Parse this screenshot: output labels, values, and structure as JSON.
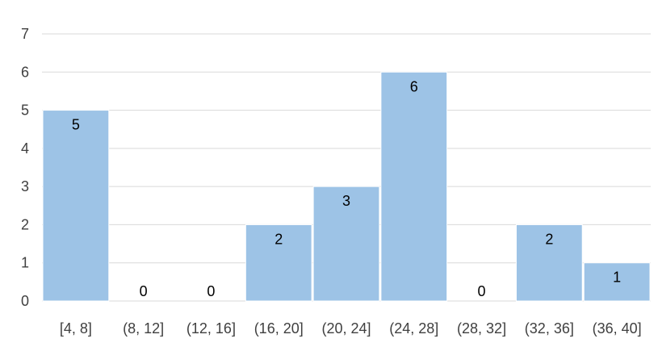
{
  "chart_data": {
    "type": "bar",
    "categories": [
      "[4, 8]",
      "(8, 12]",
      "(12, 16]",
      "(16, 20]",
      "(20, 24]",
      "(24, 28]",
      "(28, 32]",
      "(32, 36]",
      "(36, 40]"
    ],
    "values": [
      5,
      0,
      0,
      2,
      3,
      6,
      0,
      2,
      1
    ],
    "title": "",
    "xlabel": "",
    "ylabel": "",
    "ylim": [
      0,
      7
    ],
    "yticks": [
      0,
      1,
      2,
      3,
      4,
      5,
      6,
      7
    ],
    "grid": true,
    "legend": "none",
    "data_labels": true,
    "colors": {
      "bar": "#9dc3e6",
      "bar_edge": "#ffffff",
      "grid": "#d9d9d9",
      "text": "#404040"
    }
  }
}
